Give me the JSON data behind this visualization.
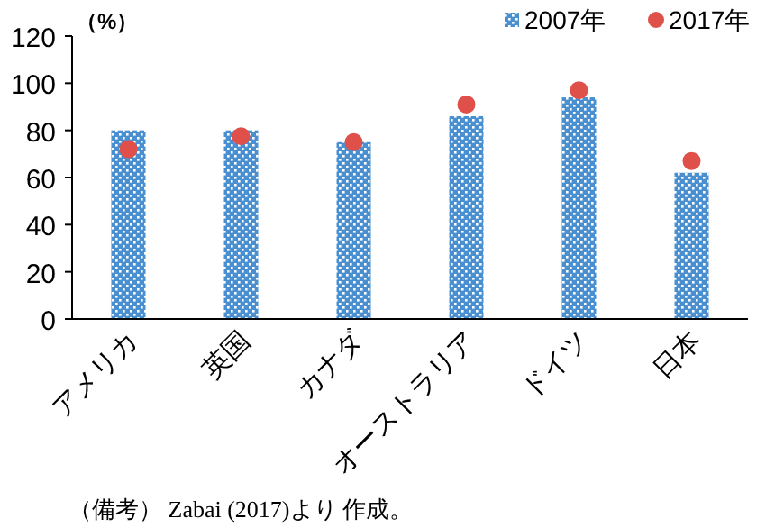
{
  "chart_data": {
    "type": "bar",
    "ylabel": "（%）",
    "categories": [
      "アメリカ",
      "英国",
      "カナダ",
      "オーストラリア",
      "ドイツ",
      "日本"
    ],
    "series": [
      {
        "name": "2007年",
        "color": "#4a90d0",
        "values": [
          80,
          80,
          75,
          86,
          94,
          62
        ]
      },
      {
        "name": "2017年",
        "type": "scatter",
        "color": "#e0504a",
        "values": [
          72,
          77.5,
          75,
          91,
          97,
          67
        ]
      }
    ],
    "ylim": [
      0,
      120
    ],
    "yticks": [
      0,
      20,
      40,
      60,
      80,
      100,
      120
    ],
    "marker": "circle",
    "legend": "top right",
    "annotations": [
      "（備考） Zabai (2017)より 作成。"
    ]
  }
}
